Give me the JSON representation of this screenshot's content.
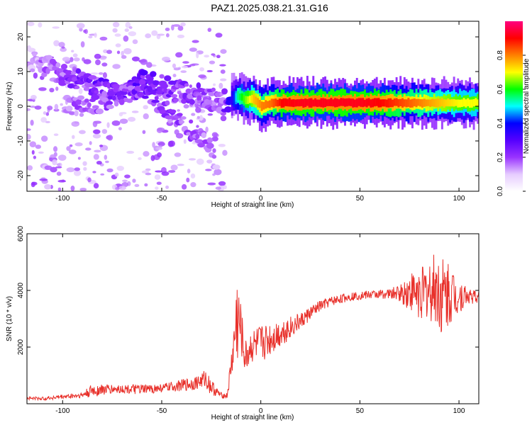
{
  "title": "PAZ1.2025.038.21.31.G16",
  "colors": {
    "snr_line": "#e8302a",
    "frame": "#000000",
    "spectrogram_background": "#ffffff"
  },
  "chart_data": [
    {
      "type": "heatmap",
      "panel": "top",
      "xlabel": "Height of straight line (km)",
      "ylabel": "Frequency (Hz)",
      "xlim": [
        -118,
        110
      ],
      "ylim": [
        -24.5,
        24.5
      ],
      "xticks": [
        -100,
        -50,
        0,
        50,
        100
      ],
      "yticks": [
        -20,
        -10,
        0,
        10,
        20
      ],
      "colorbar": {
        "label": "Normalized spectral amplitude",
        "range": [
          0,
          1
        ],
        "ticks": [
          0.0,
          0.2,
          0.4,
          0.6,
          0.8
        ],
        "tick_labels": [
          "0.0",
          "0.2",
          "0.4",
          "0.6",
          "0.8"
        ],
        "colormap": [
          "#ffffff",
          "#e6ccff",
          "#9933ff",
          "#5500ff",
          "#0000ff",
          "#00ffff",
          "#00ff00",
          "#ffff00",
          "#ff8000",
          "#ff0000",
          "#ff0080"
        ]
      },
      "ridge": {
        "description_free": true,
        "points": [
          {
            "x": -118,
            "y": 14,
            "amp": 0.12
          },
          {
            "x": -110,
            "y": 12,
            "amp": 0.18
          },
          {
            "x": -100,
            "y": 9,
            "amp": 0.22
          },
          {
            "x": -90,
            "y": 7,
            "amp": 0.26
          },
          {
            "x": -80,
            "y": 5,
            "amp": 0.28
          },
          {
            "x": -70,
            "y": 3,
            "amp": 0.26
          },
          {
            "x": -60,
            "y": 7,
            "amp": 0.3
          },
          {
            "x": -50,
            "y": 6,
            "amp": 0.26
          },
          {
            "x": -40,
            "y": 4,
            "amp": 0.26
          },
          {
            "x": -30,
            "y": 3,
            "amp": 0.24
          },
          {
            "x": -20,
            "y": 1,
            "amp": 0.2
          },
          {
            "x": -15,
            "y": 2,
            "amp": 0.35
          },
          {
            "x": -12,
            "y": 3,
            "amp": 0.55
          },
          {
            "x": -8,
            "y": 2,
            "amp": 0.65
          },
          {
            "x": -4,
            "y": 2,
            "amp": 0.75
          },
          {
            "x": 0,
            "y": 0,
            "amp": 0.8
          },
          {
            "x": 5,
            "y": 1,
            "amp": 0.82
          },
          {
            "x": 10,
            "y": 1,
            "amp": 0.9
          },
          {
            "x": 20,
            "y": 1,
            "amp": 0.92
          },
          {
            "x": 30,
            "y": 1,
            "amp": 0.92
          },
          {
            "x": 40,
            "y": 1,
            "amp": 0.92
          },
          {
            "x": 50,
            "y": 1,
            "amp": 0.92
          },
          {
            "x": 60,
            "y": 1,
            "amp": 0.9
          },
          {
            "x": 70,
            "y": 1,
            "amp": 0.85
          },
          {
            "x": 80,
            "y": 1,
            "amp": 0.8
          },
          {
            "x": 90,
            "y": 1,
            "amp": 0.75
          },
          {
            "x": 100,
            "y": 1,
            "amp": 0.7
          },
          {
            "x": 110,
            "y": 1,
            "amp": 0.7
          }
        ]
      },
      "secondary_ridge": [
        {
          "x": -100,
          "y": 0,
          "amp": 0.18
        },
        {
          "x": -80,
          "y": 1,
          "amp": 0.22
        },
        {
          "x": -60,
          "y": 5,
          "amp": 0.26
        },
        {
          "x": -45,
          "y": -2,
          "amp": 0.24
        },
        {
          "x": -35,
          "y": -7,
          "amp": 0.22
        },
        {
          "x": -25,
          "y": -12,
          "amp": 0.18
        },
        {
          "x": -22,
          "y": -20,
          "amp": 0.15
        }
      ]
    },
    {
      "type": "line",
      "panel": "bottom",
      "xlabel": "Height of straight line (km)",
      "ylabel": "SNR (10 * v/v)",
      "xlim": [
        -118,
        110
      ],
      "ylim": [
        0,
        6000
      ],
      "xticks": [
        -100,
        -50,
        0,
        50,
        100
      ],
      "yticks": [
        2000,
        4000,
        6000
      ],
      "series": [
        {
          "x": [
            -118,
            -110,
            -100,
            -90,
            -85,
            -80,
            -70,
            -60,
            -50,
            -40,
            -35,
            -30,
            -28,
            -25,
            -22,
            -20,
            -17,
            -14,
            -12,
            -10,
            -8,
            -5,
            0,
            5,
            10,
            15,
            20,
            25,
            30,
            35,
            40,
            45,
            50,
            55,
            60,
            65,
            70,
            75,
            80,
            85,
            88,
            92,
            95,
            100,
            105,
            110
          ],
          "y": [
            200,
            180,
            250,
            300,
            450,
            500,
            520,
            500,
            550,
            650,
            700,
            800,
            900,
            600,
            400,
            300,
            280,
            1800,
            3000,
            2600,
            1600,
            2000,
            2100,
            2300,
            2500,
            2700,
            2900,
            3200,
            3450,
            3600,
            3700,
            3780,
            3820,
            3850,
            3870,
            3880,
            3900,
            3950,
            3900,
            3950,
            4100,
            3700,
            3900,
            3800,
            3800,
            3750
          ],
          "noise": [
            60,
            60,
            80,
            100,
            250,
            200,
            150,
            180,
            150,
            200,
            250,
            250,
            350,
            300,
            150,
            100,
            100,
            700,
            1800,
            900,
            600,
            600,
            700,
            600,
            500,
            400,
            300,
            250,
            200,
            180,
            160,
            150,
            150,
            150,
            160,
            180,
            300,
            700,
            900,
            1100,
            1300,
            1500,
            1200,
            600,
            300,
            200
          ]
        }
      ]
    }
  ]
}
